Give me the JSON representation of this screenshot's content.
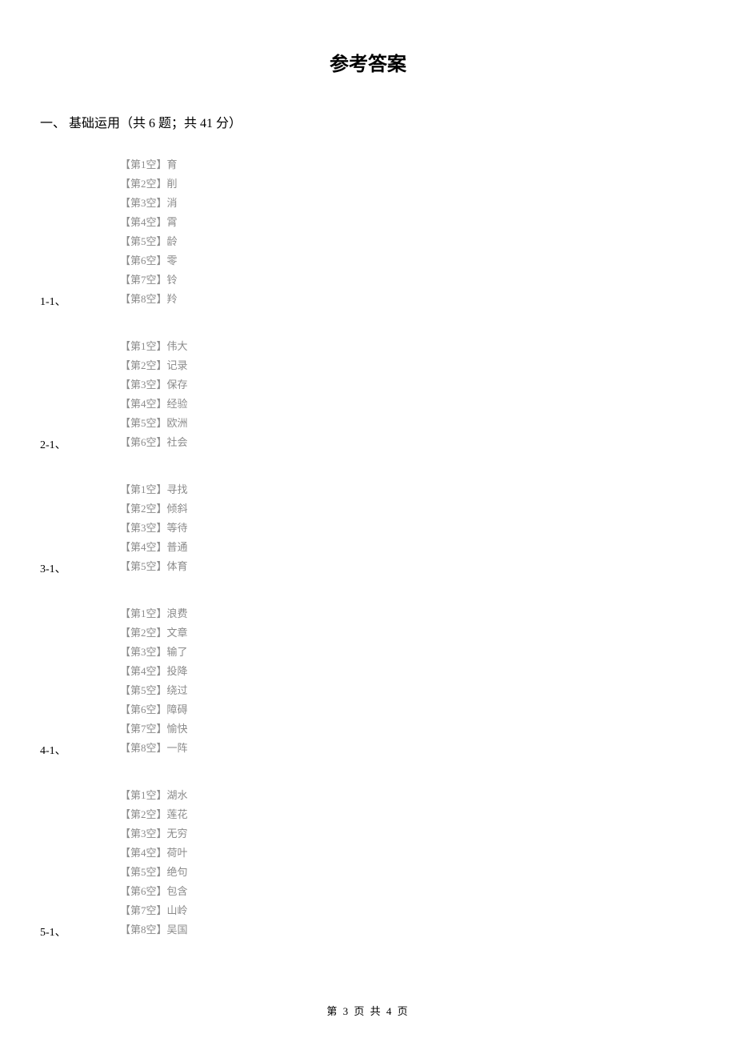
{
  "title": "参考答案",
  "section_heading": "一、 基础运用（共 6 题；共 41 分）",
  "questions": [
    {
      "number": "1-1、",
      "answers": [
        "【第1空】育",
        "【第2空】削",
        "【第3空】消",
        "【第4空】霄",
        "【第5空】龄",
        "【第6空】零",
        "【第7空】铃",
        "【第8空】羚"
      ]
    },
    {
      "number": "2-1、",
      "answers": [
        "【第1空】伟大",
        "【第2空】记录",
        "【第3空】保存",
        "【第4空】经验",
        "【第5空】欧洲",
        "【第6空】社会"
      ]
    },
    {
      "number": "3-1、",
      "answers": [
        "【第1空】寻找",
        "【第2空】倾斜",
        "【第3空】等待",
        "【第4空】普通",
        "【第5空】体育"
      ]
    },
    {
      "number": "4-1、",
      "answers": [
        "【第1空】浪费",
        "【第2空】文章",
        "【第3空】输了",
        "【第4空】投降",
        "【第5空】绕过",
        "【第6空】障碍",
        "【第7空】愉快",
        "【第8空】一阵"
      ]
    },
    {
      "number": "5-1、",
      "answers": [
        "【第1空】湖水",
        "【第2空】莲花",
        "【第3空】无穷",
        "【第4空】荷叶",
        "【第5空】绝句",
        "【第6空】包含",
        "【第7空】山岭",
        "【第8空】吴国"
      ]
    }
  ],
  "footer": "第 3 页 共 4 页"
}
